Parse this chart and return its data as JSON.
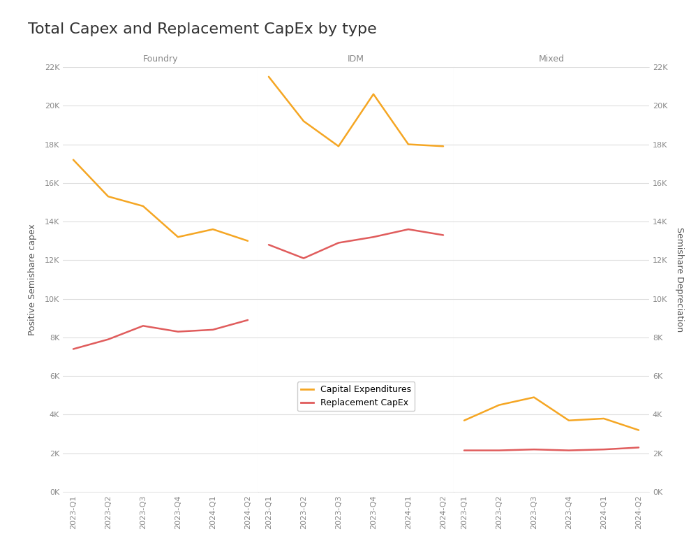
{
  "title": "Total Capex and Replacement CapEx by type",
  "panels": [
    "Foundry",
    "IDM",
    "Mixed"
  ],
  "x_labels": [
    "2023-Q1",
    "2023-Q2",
    "2023-Q3",
    "2023-Q4",
    "2024-Q1",
    "2024-Q2"
  ],
  "foundry": {
    "capex": [
      17200,
      15300,
      14800,
      13200,
      13600,
      13000
    ],
    "repl_capex": [
      7400,
      7900,
      8600,
      8300,
      8400,
      8900
    ]
  },
  "idm": {
    "capex": [
      21500,
      19200,
      17900,
      20600,
      18000,
      17900
    ],
    "repl_capex": [
      12800,
      12100,
      12900,
      13200,
      13600,
      13300
    ]
  },
  "mixed": {
    "capex": [
      3700,
      4500,
      4900,
      3700,
      3800,
      3200
    ],
    "repl_capex": [
      2150,
      2150,
      2200,
      2150,
      2200,
      2300
    ]
  },
  "capex_color": "#F5A623",
  "repl_color": "#E05C5C",
  "bg_color": "#FFFFFF",
  "grid_color": "#DDDDDD",
  "panel_label_color": "#888888",
  "axis_label_color": "#555555",
  "tick_label_color": "#888888",
  "title_color": "#333333",
  "legend_labels": [
    "Capital Expenditures",
    "Replacement CapEx"
  ],
  "ylabel_left": "Positive Semishare capex",
  "ylabel_right": "Semishare Depreciation",
  "ylim": [
    0,
    22000
  ],
  "yticks": [
    0,
    2000,
    4000,
    6000,
    8000,
    10000,
    12000,
    14000,
    16000,
    18000,
    20000,
    22000
  ]
}
